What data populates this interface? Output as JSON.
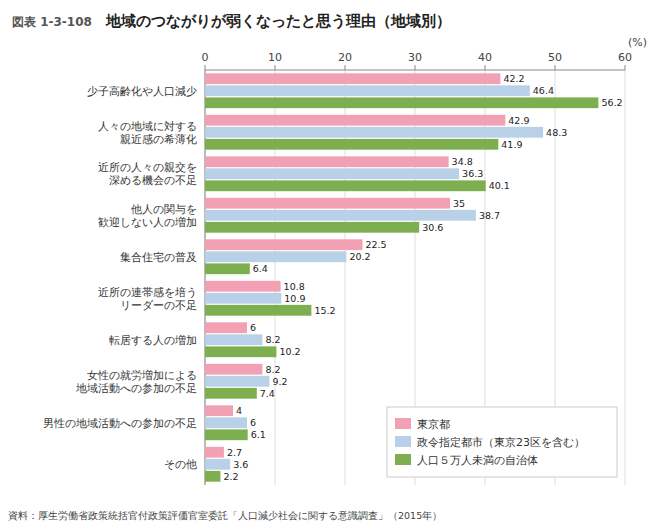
{
  "chart_data": {
    "type": "bar",
    "orientation": "horizontal",
    "title": "地域のつながりが弱くなったと思う理由（地域別）",
    "annotations": [
      "図表 1-3-108",
      "資料：厚生労働省政策統括官付政策評価官室委託「人口減少社会に関する意識調査」（2015年）"
    ],
    "xlabel": "(%)",
    "categories": [
      "少子高齢化や人口減少",
      "人々の地域に対する\n親近感の希薄化",
      "近所の人々の親交を\n深める機会の不足",
      "他人の関与を\n歓迎しない人の増加",
      "集合住宅の普及",
      "近所の連帯感を培う\nリーダーの不足",
      "転居する人の増加",
      "女性の就労増加による\n地域活動への参加の不足",
      "男性の地域活動への参加の不足",
      "その他"
    ],
    "series": [
      {
        "name": "東京都",
        "color": "#F2A0B4",
        "values": [
          42.2,
          42.9,
          34.8,
          35.0,
          22.5,
          10.8,
          6.0,
          8.2,
          4.0,
          2.7
        ]
      },
      {
        "name": "政令指定都市（東京23区を含む）",
        "color": "#B8D0E8",
        "values": [
          46.4,
          48.3,
          36.3,
          38.7,
          20.2,
          10.9,
          8.2,
          9.2,
          6.0,
          3.6
        ]
      },
      {
        "name": "人口５万人未満の自治体",
        "color": "#7DAF50",
        "values": [
          56.2,
          41.9,
          40.1,
          30.6,
          6.4,
          15.2,
          10.2,
          7.4,
          6.1,
          2.2
        ]
      }
    ],
    "xlim": [
      0,
      60
    ],
    "xticks": [
      0,
      10,
      20,
      30,
      40,
      50,
      60
    ],
    "grid": true,
    "legend": "lower right",
    "data_labels": true
  }
}
